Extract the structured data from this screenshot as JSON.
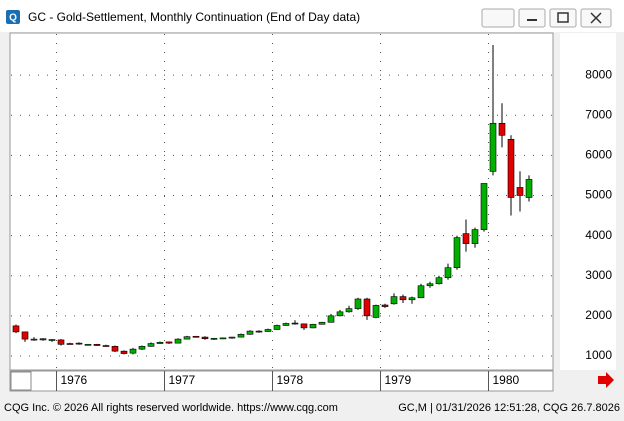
{
  "chart_data": {
    "type": "candlestick",
    "title": "GC - Gold-Settlement, Monthly Continuation (End of Day data)",
    "categories": [
      null,
      null,
      null,
      null,
      null,
      null,
      null,
      null,
      null,
      null,
      null,
      null,
      null,
      null,
      null,
      null,
      null,
      null,
      null,
      null,
      null,
      null,
      null,
      null,
      null,
      null,
      null,
      null,
      null,
      null,
      null,
      null,
      null,
      null,
      null,
      null,
      null,
      null,
      null,
      null,
      null,
      null,
      null,
      null,
      null,
      null,
      null,
      null,
      null,
      null,
      null,
      null,
      null,
      null,
      null,
      null,
      null,
      null
    ],
    "open": [
      1750,
      1600,
      1420,
      1430,
      1390,
      1400,
      1310,
      1320,
      1280,
      1290,
      1260,
      1240,
      1120,
      1070,
      1170,
      1240,
      1310,
      1350,
      1320,
      1420,
      1490,
      1470,
      1430,
      1440,
      1450,
      1470,
      1540,
      1620,
      1610,
      1660,
      1760,
      1820,
      1800,
      1700,
      1790,
      1840,
      2000,
      2100,
      2180,
      2420,
      1960,
      2270,
      2300,
      2480,
      2400,
      2450,
      2750,
      2800,
      2950,
      3200,
      4050,
      3800,
      4150,
      5600,
      6800,
      6400,
      5200,
      4950
    ],
    "high": [
      1780,
      1610,
      1470,
      1440,
      1420,
      1420,
      1330,
      1340,
      1300,
      1300,
      1280,
      1260,
      1140,
      1200,
      1260,
      1340,
      1360,
      1360,
      1440,
      1500,
      1500,
      1490,
      1450,
      1460,
      1480,
      1560,
      1640,
      1640,
      1680,
      1780,
      1830,
      1890,
      1810,
      1800,
      1850,
      2050,
      2150,
      2250,
      2450,
      2450,
      2280,
      2300,
      2560,
      2530,
      2480,
      2800,
      2850,
      3000,
      3300,
      4000,
      4400,
      4200,
      5300,
      8750,
      7300,
      6500,
      5600,
      5500
    ],
    "low": [
      1570,
      1350,
      1380,
      1380,
      1350,
      1260,
      1290,
      1280,
      1270,
      1250,
      1240,
      1100,
      1040,
      1040,
      1150,
      1230,
      1300,
      1300,
      1310,
      1420,
      1460,
      1400,
      1400,
      1420,
      1430,
      1460,
      1530,
      1580,
      1600,
      1650,
      1750,
      1780,
      1650,
      1690,
      1780,
      1830,
      1990,
      2080,
      2150,
      1900,
      1940,
      2200,
      2280,
      2320,
      2300,
      2440,
      2700,
      2780,
      2900,
      3150,
      3600,
      3700,
      4100,
      5500,
      6200,
      4500,
      4600,
      4850
    ],
    "close": [
      1600,
      1420,
      1420,
      1400,
      1410,
      1290,
      1300,
      1300,
      1290,
      1260,
      1250,
      1120,
      1060,
      1170,
      1240,
      1310,
      1340,
      1320,
      1420,
      1480,
      1470,
      1430,
      1440,
      1450,
      1470,
      1540,
      1620,
      1610,
      1660,
      1760,
      1810,
      1800,
      1700,
      1790,
      1840,
      2000,
      2100,
      2180,
      2420,
      2000,
      2260,
      2230,
      2480,
      2400,
      2450,
      2750,
      2800,
      2950,
      3200,
      3950,
      3800,
      4150,
      5300,
      6800,
      6500,
      4950,
      5000,
      5400
    ],
    "ylim": [
      650,
      9050
    ],
    "yticks": [
      1000,
      2000,
      3000,
      4000,
      5000,
      6000,
      7000,
      8000
    ],
    "xticks": [
      {
        "value": 5,
        "label": "1976"
      },
      {
        "value": 17,
        "label": "1977"
      },
      {
        "value": 29,
        "label": "1978"
      },
      {
        "value": 41,
        "label": "1979"
      },
      {
        "value": 53,
        "label": "1980"
      }
    ],
    "up_color": "#00b000",
    "down_color": "#e00000",
    "grid": true
  },
  "status": {
    "copyright": "CQG Inc. © 2026 All rights reserved worldwide. https://www.cqg.com",
    "info": "GC,M | 01/31/2026 12:51:28, CQG 26.7.8026"
  }
}
